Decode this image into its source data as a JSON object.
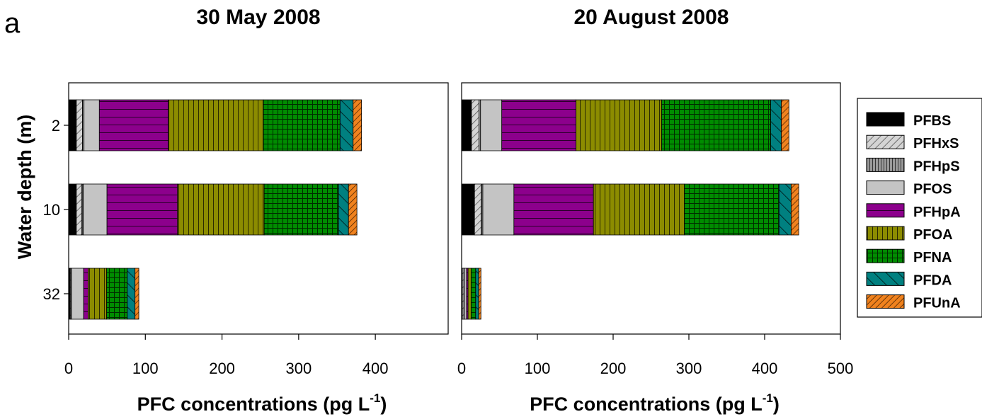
{
  "panel_letter": "a",
  "chart_data": [
    {
      "type": "bar",
      "orientation": "horizontal",
      "stacked": true,
      "title": "30 May 2008",
      "xlabel": "PFC concentrations (pg L",
      "xlabel_sup": "-1",
      "xlabel_close": ")",
      "ylabel": "Water depth (m)",
      "xlim": [
        0,
        495
      ],
      "xticks": [
        0,
        100,
        200,
        300,
        400
      ],
      "categories": [
        "2",
        "10",
        "32"
      ],
      "series": [
        {
          "name": "PFBS",
          "values": [
            10,
            10,
            2
          ]
        },
        {
          "name": "PFHxS",
          "values": [
            8,
            7,
            1
          ]
        },
        {
          "name": "PFHpS",
          "values": [
            2,
            2,
            0.5
          ]
        },
        {
          "name": "PFOS",
          "values": [
            20,
            31,
            16
          ]
        },
        {
          "name": "PFHpA",
          "values": [
            90,
            92,
            6
          ]
        },
        {
          "name": "PFOA",
          "values": [
            124,
            113,
            24
          ]
        },
        {
          "name": "PFNA",
          "values": [
            100,
            97,
            27
          ]
        },
        {
          "name": "PFDA",
          "values": [
            17,
            13,
            10
          ]
        },
        {
          "name": "PFUnA",
          "values": [
            11,
            11,
            5
          ]
        }
      ]
    },
    {
      "type": "bar",
      "orientation": "horizontal",
      "stacked": true,
      "title": "20 August 2008",
      "xlabel": "PFC concentrations (pg L",
      "xlabel_sup": "-1",
      "xlabel_close": ")",
      "xlim": [
        0,
        500
      ],
      "xticks": [
        0,
        100,
        200,
        300,
        400,
        500
      ],
      "categories": [
        "2",
        "10",
        "32"
      ],
      "series": [
        {
          "name": "PFBS",
          "values": [
            13,
            17,
            1
          ]
        },
        {
          "name": "PFHxS",
          "values": [
            10,
            9,
            2
          ]
        },
        {
          "name": "PFHpS",
          "values": [
            2,
            2,
            0.5
          ]
        },
        {
          "name": "PFOS",
          "values": [
            28,
            41,
            3
          ]
        },
        {
          "name": "PFHpA",
          "values": [
            98,
            105,
            2
          ]
        },
        {
          "name": "PFOA",
          "values": [
            113,
            120,
            4
          ]
        },
        {
          "name": "PFNA",
          "values": [
            144,
            125,
            6
          ]
        },
        {
          "name": "PFDA",
          "values": [
            14,
            16,
            4
          ]
        },
        {
          "name": "PFUnA",
          "values": [
            10,
            10,
            3
          ]
        }
      ]
    }
  ],
  "legend": {
    "position": "right",
    "items": [
      {
        "name": "PFBS",
        "color": "#000000"
      },
      {
        "name": "PFHxS",
        "color": "#c8c8c8"
      },
      {
        "name": "PFHpS",
        "color": "#8c8c8c"
      },
      {
        "name": "PFOS",
        "color": "#c4c4c4"
      },
      {
        "name": "PFHpA",
        "color": "#8c008c"
      },
      {
        "name": "PFOA",
        "color": "#8c8c00"
      },
      {
        "name": "PFNA",
        "color": "#008c00"
      },
      {
        "name": "PFDA",
        "color": "#008080"
      },
      {
        "name": "PFUnA",
        "color": "#f0821e"
      }
    ]
  }
}
